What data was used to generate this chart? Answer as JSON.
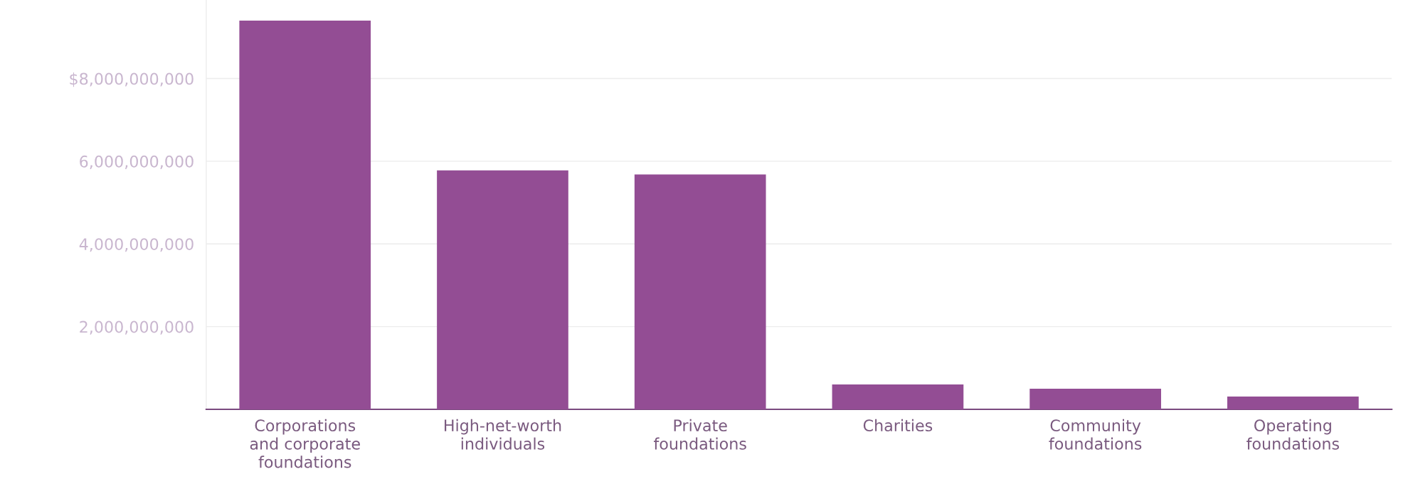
{
  "chart_data": {
    "type": "bar",
    "categories": [
      "Corporations\nand corporate\nfoundations",
      "High-net-worth\nindividuals",
      "Private\nfoundations",
      "Charities",
      "Community\nfoundations",
      "Operating\nfoundations"
    ],
    "values": [
      9400000000,
      5780000000,
      5680000000,
      600000000,
      500000000,
      310000000
    ],
    "color": "#934d94",
    "ylim": [
      0,
      9900000000
    ],
    "yticks": [
      {
        "value": 2000000000,
        "label": "2,000,000,000"
      },
      {
        "value": 4000000000,
        "label": "4,000,000,000"
      },
      {
        "value": 6000000000,
        "label": "6,000,000,000"
      },
      {
        "value": 8000000000,
        "label": "$8,000,000,000"
      }
    ],
    "grid": "y"
  }
}
